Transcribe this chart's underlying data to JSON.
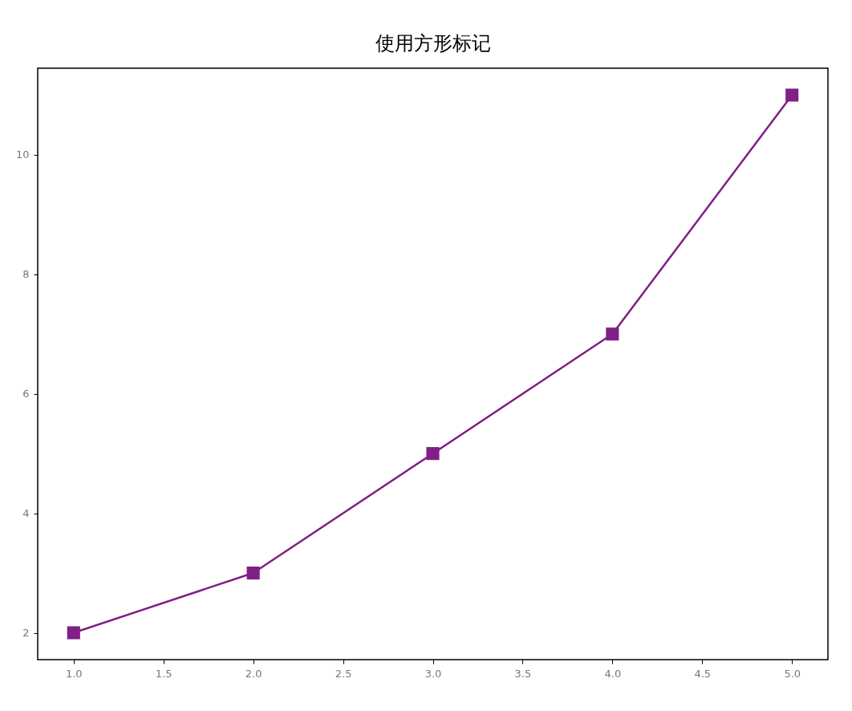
{
  "chart_data": {
    "type": "line",
    "title": "使用方形标记",
    "x": [
      1,
      2,
      3,
      4,
      5
    ],
    "series": [
      {
        "color": "#7f1f87",
        "values": [
          2,
          3,
          5,
          7,
          11
        ]
      }
    ],
    "xlim": [
      0.8,
      5.2
    ],
    "ylim": [
      1.55,
      11.45
    ],
    "xticks": [
      {
        "value": 1,
        "label": "1.0"
      },
      {
        "value": 1.5,
        "label": "1.5"
      },
      {
        "value": 2,
        "label": "2.0"
      },
      {
        "value": 2.5,
        "label": "2.5"
      },
      {
        "value": 3,
        "label": "3.0"
      },
      {
        "value": 3.5,
        "label": "3.5"
      },
      {
        "value": 4,
        "label": "4.0"
      },
      {
        "value": 4.5,
        "label": "4.5"
      },
      {
        "value": 5,
        "label": "5.0"
      }
    ],
    "yticks": [
      2,
      4,
      6,
      8,
      10
    ],
    "grid": false,
    "marker": "square",
    "line_style": "solid"
  }
}
